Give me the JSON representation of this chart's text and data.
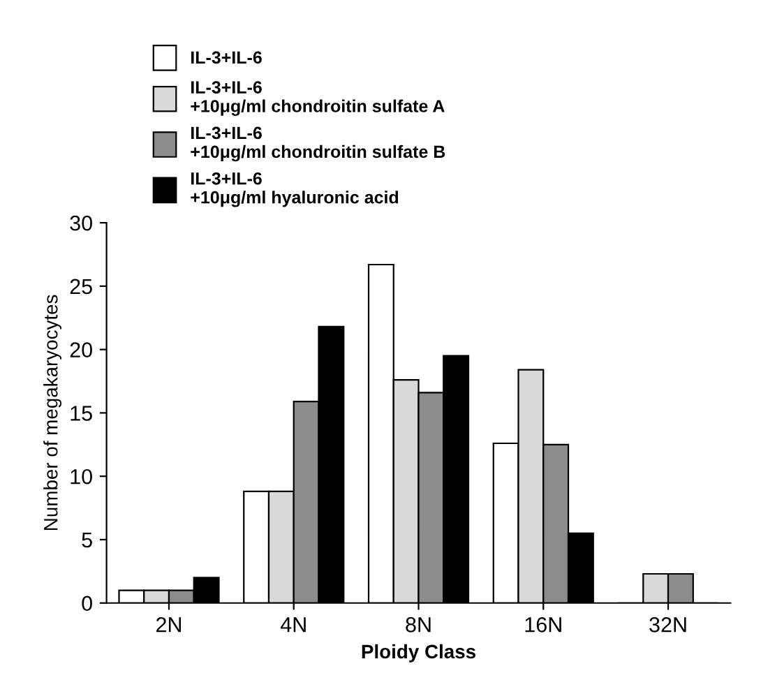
{
  "chart_data": {
    "type": "bar",
    "xlabel": "Ploidy Class",
    "ylabel": "Number of megakaryocytes",
    "categories": [
      "2N",
      "4N",
      "8N",
      "16N",
      "32N"
    ],
    "series": [
      {
        "name": "IL-3+IL-6",
        "color": "#ffffff",
        "values": [
          1,
          8.8,
          26.7,
          12.6,
          0
        ]
      },
      {
        "name": "IL-3+IL-6\n+10μg/ml chondroitin sulfate A",
        "color": "#d9d9d9",
        "values": [
          1,
          8.8,
          17.6,
          18.4,
          2.3
        ]
      },
      {
        "name": "IL-3+IL-6\n+10μg/ml chondroitin sulfate B",
        "color": "#8c8c8c",
        "values": [
          1,
          15.9,
          16.6,
          12.5,
          2.3
        ]
      },
      {
        "name": "IL-3+IL-6\n+10μg/ml hyaluronic acid",
        "color": "#000000",
        "values": [
          2,
          21.8,
          19.5,
          5.5,
          0
        ]
      }
    ],
    "ylim": [
      0,
      30
    ],
    "yticks": [
      0,
      5,
      10,
      15,
      20,
      25,
      30
    ],
    "grid": false,
    "legend": "top"
  }
}
